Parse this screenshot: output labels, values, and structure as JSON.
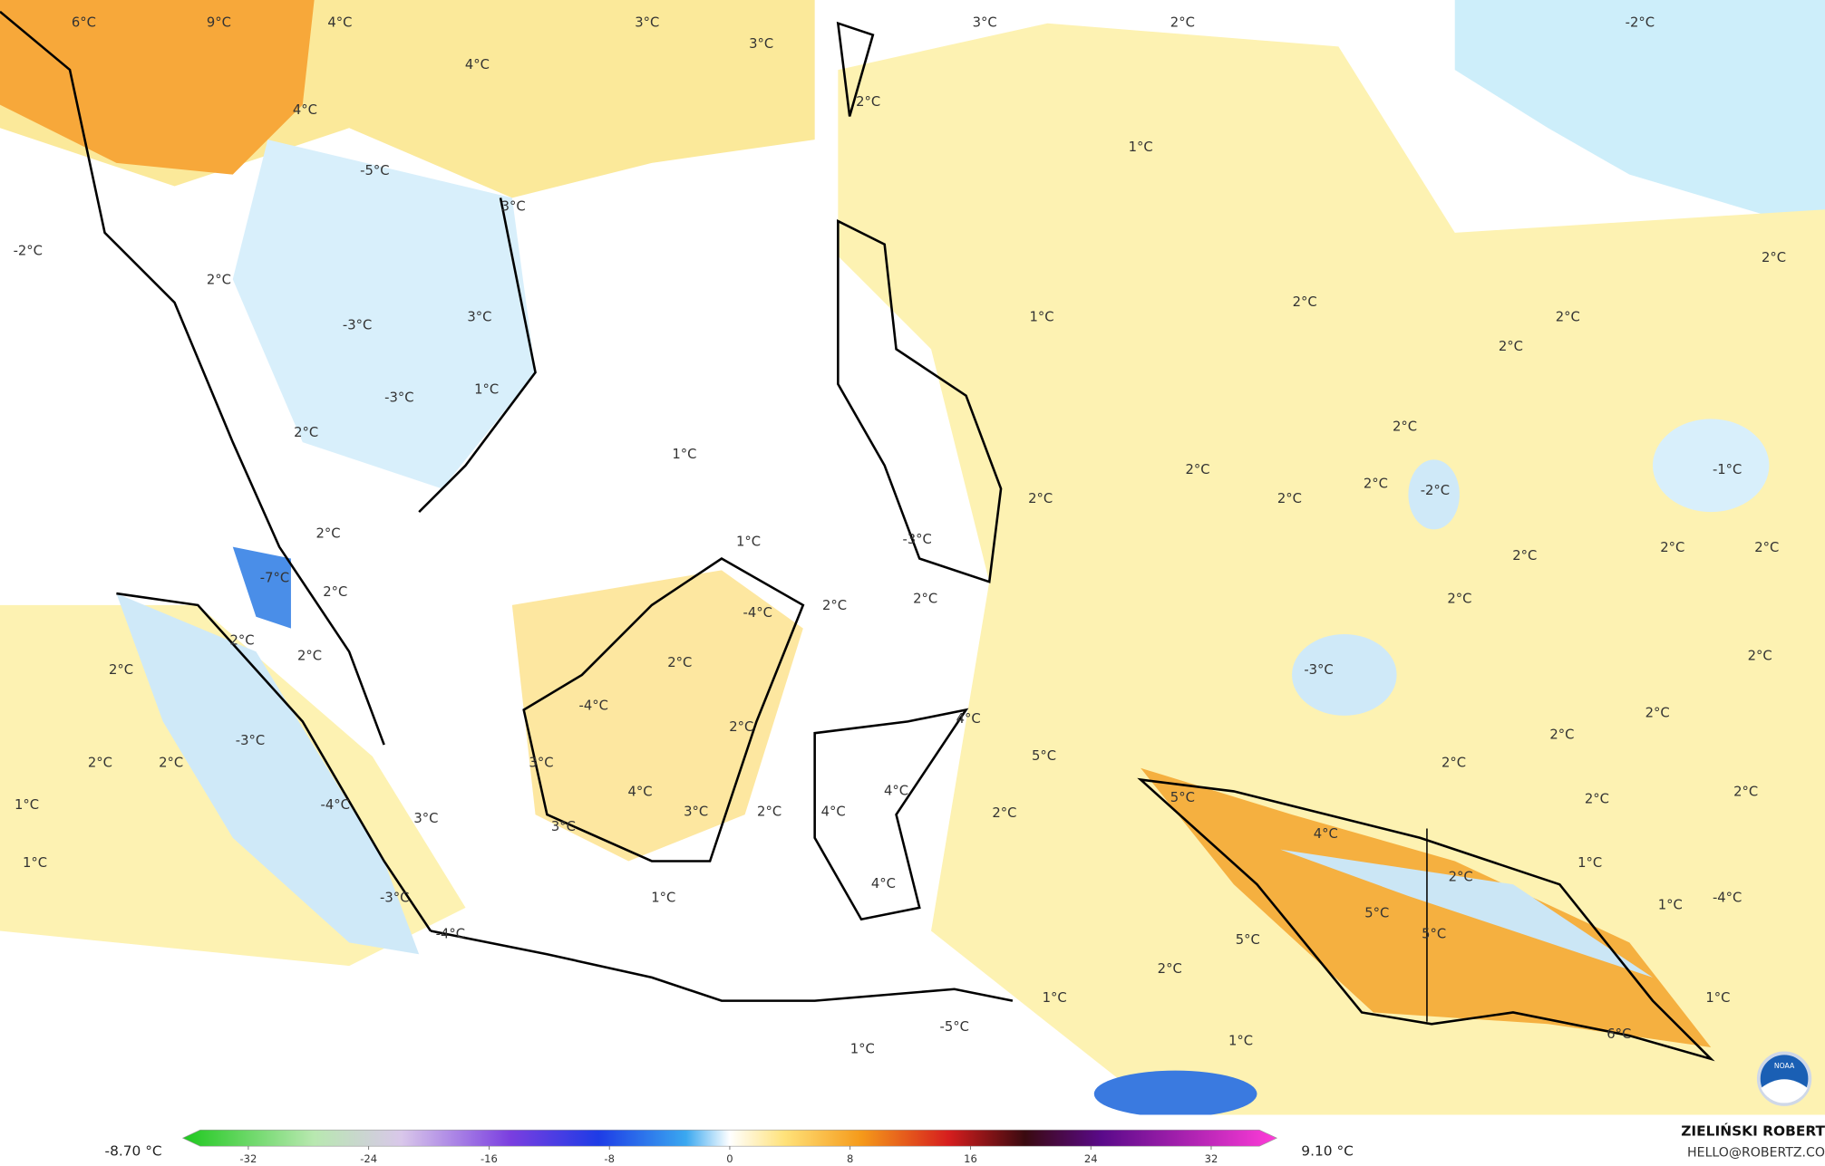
{
  "map": {
    "labels": [
      "6°C",
      "9°C",
      "4°C",
      "3°C",
      "3°C",
      "2°C",
      "-2°C",
      "4°C",
      "3°C",
      "2°C",
      "4°C",
      "1°C",
      "-5°C",
      "3°C",
      "-2°C",
      "2°C",
      "-3°C",
      "3°C",
      "2°C",
      "2°C",
      "1°C",
      "2°C",
      "2°C",
      "1°C",
      "-3°C",
      "2°C",
      "1°C",
      "2°C",
      "2°C",
      "-1°C",
      "-2°C",
      "2°C",
      "2°C",
      "2°C",
      "2°C",
      "1°C",
      "-3°C",
      "2°C",
      "2°C",
      "2°C",
      "-7°C",
      "2°C",
      "2°C",
      "-4°C",
      "2°C",
      "2°C",
      "2°C",
      "2°C",
      "2°C",
      "2°C",
      "2°C",
      "-3°C",
      "-4°C",
      "2°C",
      "-3°C",
      "2°C",
      "4°C",
      "2°C",
      "2°C",
      "2°C",
      "3°C",
      "5°C",
      "2°C",
      "4°C",
      "-4°C",
      "1°C",
      "5°C",
      "2°C",
      "2°C",
      "3°C",
      "2°C",
      "4°C",
      "4°C",
      "2°C",
      "3°C",
      "3°C",
      "4°C",
      "1°C",
      "1°C",
      "2°C",
      "-3°C",
      "4°C",
      "1°C",
      "1°C",
      "-4°C",
      "5°C",
      "-4°C",
      "5°C",
      "5°C",
      "2°C",
      "1°C",
      "1°C",
      "-5°C",
      "1°C",
      "1°C",
      "6°C"
    ],
    "colorbar": {
      "min_label": "-8.70 °C",
      "max_label": "9.10 °C",
      "lim": [
        -35.2,
        35.2
      ],
      "ticks": [
        -32,
        -24,
        -16,
        -8,
        0,
        8,
        16,
        24,
        32
      ]
    },
    "credit": {
      "name": "ZIELIŃSKI ROBERT",
      "contact": "HELLO@ROBERTZ.CO",
      "logo": "NOAA"
    }
  }
}
